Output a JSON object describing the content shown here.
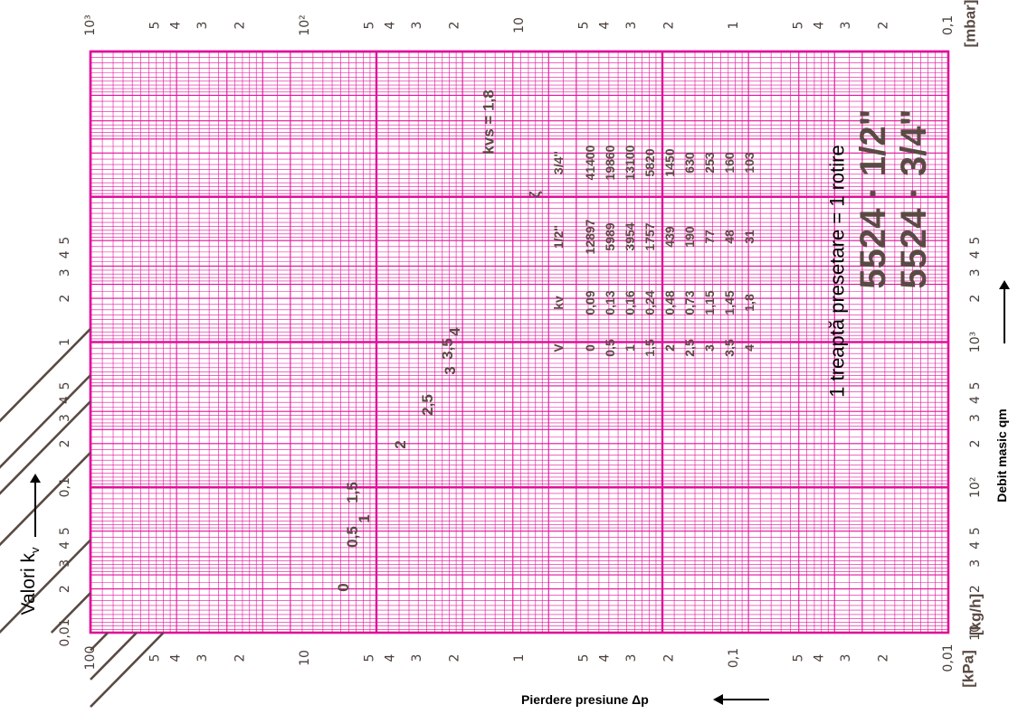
{
  "chart_data": {
    "type": "line",
    "xscale": "log",
    "yscale": "log",
    "xlabel": "Valori k",
    "xlabel_sub": "v",
    "ylabel_left": "Pierdere presiune Δp",
    "ylabel_right": "Debit masic qm",
    "xlim": [
      0.01,
      10
    ],
    "ylim_kPa": [
      0.01,
      100
    ],
    "ylim_mbar": [
      0.1,
      1000
    ],
    "y2lim_kgh": [
      10,
      10000
    ],
    "unit_kpa": "[kPa]",
    "unit_mbar": "[mbar]",
    "unit_kgh": "[kg/h]",
    "ticks_kv": [
      {
        "v": 0.01,
        "label": "0,01"
      },
      {
        "v": 0.02,
        "label": "2"
      },
      {
        "v": 0.03,
        "label": "3"
      },
      {
        "v": 0.04,
        "label": "4"
      },
      {
        "v": 0.05,
        "label": "5"
      },
      {
        "v": 0.1,
        "label": "0,1"
      },
      {
        "v": 0.2,
        "label": "2"
      },
      {
        "v": 0.3,
        "label": "3"
      },
      {
        "v": 0.4,
        "label": "4"
      },
      {
        "v": 0.5,
        "label": "5"
      },
      {
        "v": 1,
        "label": "1"
      },
      {
        "v": 2,
        "label": "2"
      },
      {
        "v": 3,
        "label": "3"
      },
      {
        "v": 4,
        "label": "4"
      },
      {
        "v": 5,
        "label": "5"
      }
    ],
    "ticks_qm": [
      {
        "v": 10,
        "label": "10"
      },
      {
        "v": 20,
        "label": "2"
      },
      {
        "v": 30,
        "label": "3"
      },
      {
        "v": 40,
        "label": "4"
      },
      {
        "v": 50,
        "label": "5"
      },
      {
        "v": 100,
        "label": "10²"
      },
      {
        "v": 200,
        "label": "2"
      },
      {
        "v": 300,
        "label": "3"
      },
      {
        "v": 400,
        "label": "4"
      },
      {
        "v": 500,
        "label": "5"
      },
      {
        "v": 1000,
        "label": "10³"
      },
      {
        "v": 2000,
        "label": "2"
      },
      {
        "v": 3000,
        "label": "3"
      },
      {
        "v": 4000,
        "label": "4"
      },
      {
        "v": 5000,
        "label": "5"
      }
    ],
    "ticks_kpa": [
      {
        "v": 100,
        "label": "100"
      },
      {
        "v": 50,
        "label": "5"
      },
      {
        "v": 40,
        "label": "4"
      },
      {
        "v": 30,
        "label": "3"
      },
      {
        "v": 20,
        "label": "2"
      },
      {
        "v": 10,
        "label": "10"
      },
      {
        "v": 5,
        "label": "5"
      },
      {
        "v": 4,
        "label": "4"
      },
      {
        "v": 3,
        "label": "3"
      },
      {
        "v": 2,
        "label": "2"
      },
      {
        "v": 1,
        "label": "1"
      },
      {
        "v": 0.5,
        "label": "5"
      },
      {
        "v": 0.4,
        "label": "4"
      },
      {
        "v": 0.3,
        "label": "3"
      },
      {
        "v": 0.2,
        "label": "2"
      },
      {
        "v": 0.1,
        "label": "0,1"
      },
      {
        "v": 0.05,
        "label": "5"
      },
      {
        "v": 0.04,
        "label": "4"
      },
      {
        "v": 0.03,
        "label": "3"
      },
      {
        "v": 0.02,
        "label": "2"
      },
      {
        "v": 0.01,
        "label": "0,01"
      }
    ],
    "ticks_mbar": [
      {
        "v": 1000,
        "label": "10³"
      },
      {
        "v": 500,
        "label": "5"
      },
      {
        "v": 400,
        "label": "4"
      },
      {
        "v": 300,
        "label": "3"
      },
      {
        "v": 200,
        "label": "2"
      },
      {
        "v": 100,
        "label": "10²"
      },
      {
        "v": 50,
        "label": "5"
      },
      {
        "v": 40,
        "label": "4"
      },
      {
        "v": 30,
        "label": "3"
      },
      {
        "v": 20,
        "label": "2"
      },
      {
        "v": 10,
        "label": "10"
      },
      {
        "v": 5,
        "label": "5"
      },
      {
        "v": 4,
        "label": "4"
      },
      {
        "v": 3,
        "label": "3"
      },
      {
        "v": 2,
        "label": "2"
      },
      {
        "v": 1,
        "label": "1"
      },
      {
        "v": 0.5,
        "label": "5"
      },
      {
        "v": 0.4,
        "label": "4"
      },
      {
        "v": 0.3,
        "label": "3"
      },
      {
        "v": 0.2,
        "label": "2"
      },
      {
        "v": 0.1,
        "label": "0,1"
      }
    ],
    "series": [
      {
        "label": "0",
        "kv": 0.09
      },
      {
        "label": "0,5",
        "kv": 0.13
      },
      {
        "label": "1",
        "kv": 0.16
      },
      {
        "label": "1,5",
        "kv": 0.24
      },
      {
        "label": "2",
        "kv": 0.48
      },
      {
        "label": "2,5",
        "kv": 0.73
      },
      {
        "label": "3",
        "kv": 1.15
      },
      {
        "label": "3,5",
        "kv": 1.45
      },
      {
        "label": "4",
        "kv": 1.8
      }
    ],
    "kvs_label": "kvs = 1,8",
    "table": {
      "headers": [
        "V",
        "kv",
        "1/2\"",
        "3/4\""
      ],
      "group_header": "ζ",
      "rows": [
        [
          "0",
          "0,09",
          "12897",
          "41400"
        ],
        [
          "0,5",
          "0,13",
          "5989",
          "19860"
        ],
        [
          "1",
          "0,16",
          "3954",
          "13100"
        ],
        [
          "1,5",
          "0,24",
          "1757",
          "5820"
        ],
        [
          "2",
          "0,48",
          "439",
          "1450"
        ],
        [
          "2,5",
          "0,73",
          "190",
          "630"
        ],
        [
          "3",
          "1,15",
          "77",
          "253"
        ],
        [
          "3,5",
          "1,45",
          "48",
          "160"
        ],
        [
          "4",
          "1,8",
          "31",
          "103"
        ]
      ]
    },
    "note": "1 treaptă presetare = 1 rotire",
    "models": [
      "5524 · 1/2\"",
      "5524 · 3/4\""
    ]
  },
  "colors": {
    "grid": "#e0109a",
    "line": "#5a4a44",
    "ink": "#000000",
    "text": "#4a3f3a"
  }
}
